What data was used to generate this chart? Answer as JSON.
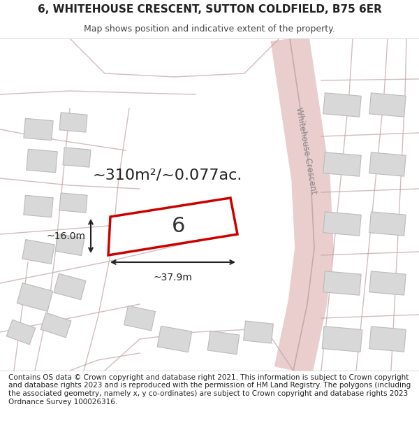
{
  "title": "6, WHITEHOUSE CRESCENT, SUTTON COLDFIELD, B75 6ER",
  "subtitle": "Map shows position and indicative extent of the property.",
  "footer": "Contains OS data © Crown copyright and database right 2021. This information is subject to Crown copyright and database rights 2023 and is reproduced with the permission of HM Land Registry. The polygons (including the associated geometry, namely x, y co-ordinates) are subject to Crown copyright and database rights 2023 Ordnance Survey 100026316.",
  "area_label": "~310m²/~0.077ac.",
  "width_label": "~37.9m",
  "height_label": "~16.0m",
  "plot_number": "6",
  "background_color": "#ffffff",
  "map_bg": "#f5f5f5",
  "plot_color": "#cc0000",
  "plot_fill": "#ffffff",
  "road_color": "#e8c8c8",
  "building_color": "#d8d8d8",
  "road_line_color": "#c0a0a0",
  "street_label": "Whitehouse Crescent",
  "title_fontsize": 11,
  "subtitle_fontsize": 9,
  "footer_fontsize": 7.5
}
